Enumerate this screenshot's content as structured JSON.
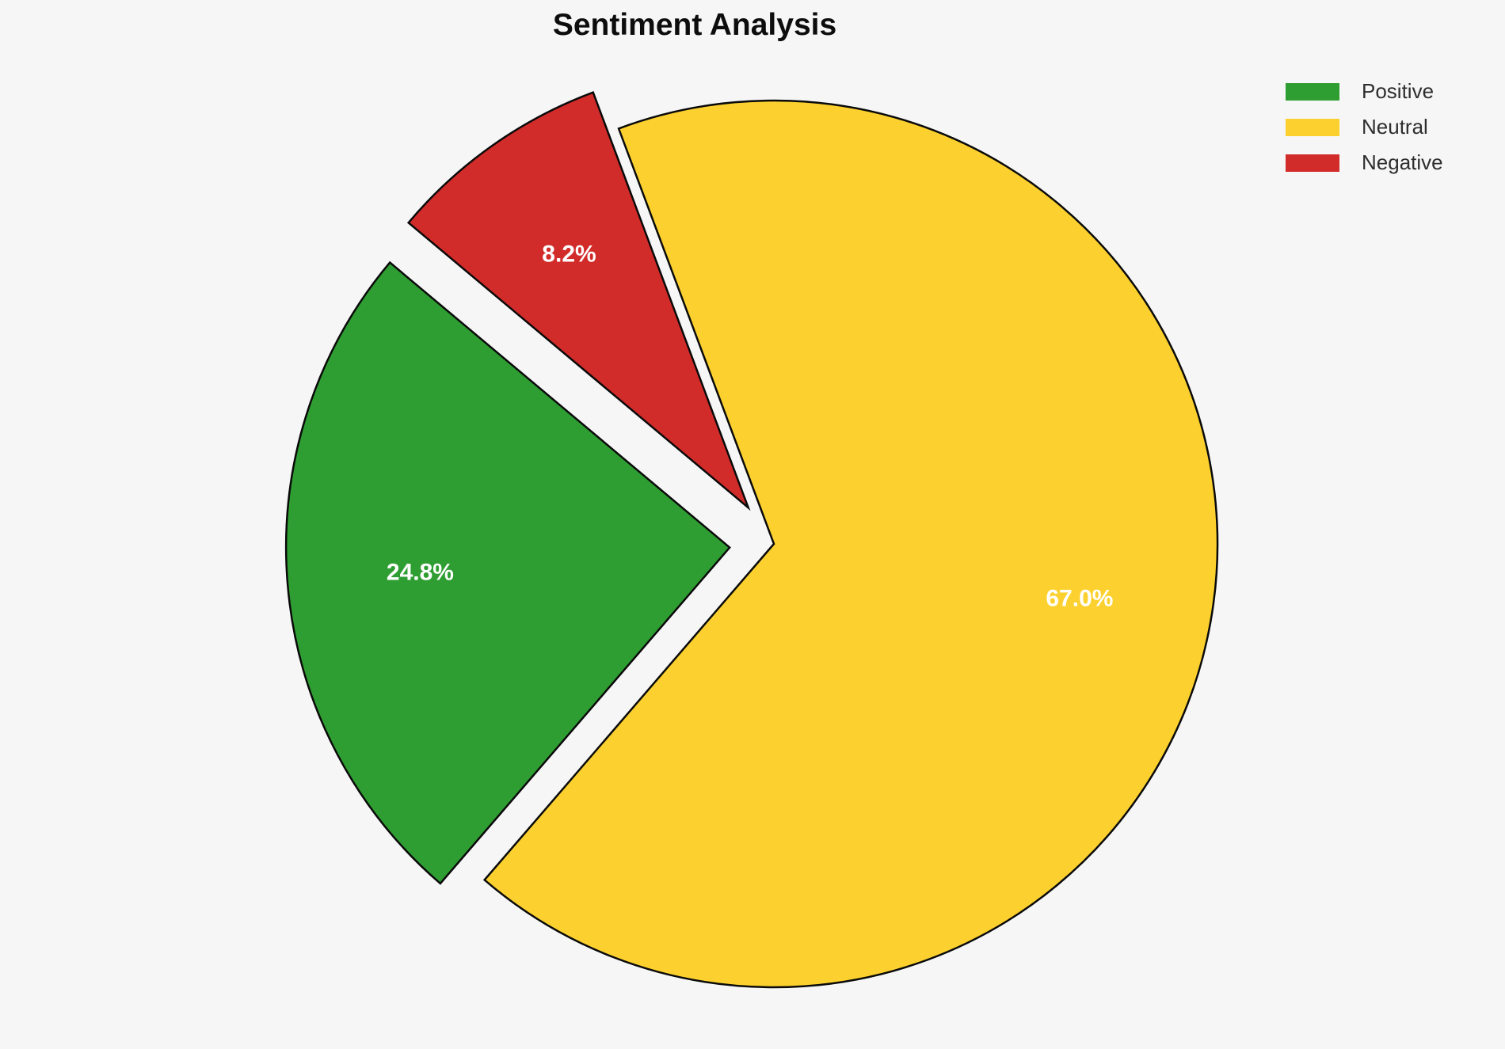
{
  "chart_data": {
    "type": "pie",
    "title": "Sentiment Analysis",
    "labels": [
      "Positive",
      "Neutral",
      "Negative"
    ],
    "values": [
      24.8,
      67.0,
      8.2
    ],
    "pct_labels": [
      "24.8%",
      "67.0%",
      "8.2%"
    ],
    "colors": [
      "#2F9E32",
      "#FCD12F",
      "#D22C2A"
    ],
    "explode": [
      0.1,
      0,
      0.1
    ],
    "start_angle": 140,
    "direction": "counterclockwise",
    "slice_edge_color": "#0a0a0a",
    "pct_label_color": "#ffffff",
    "legend": {
      "position": "upper right",
      "entries": [
        "Positive",
        "Neutral",
        "Negative"
      ]
    },
    "background_color": "#F6F6F6",
    "title_color": "#0d0d0d",
    "legend_text_color": "#2e2e2e"
  }
}
